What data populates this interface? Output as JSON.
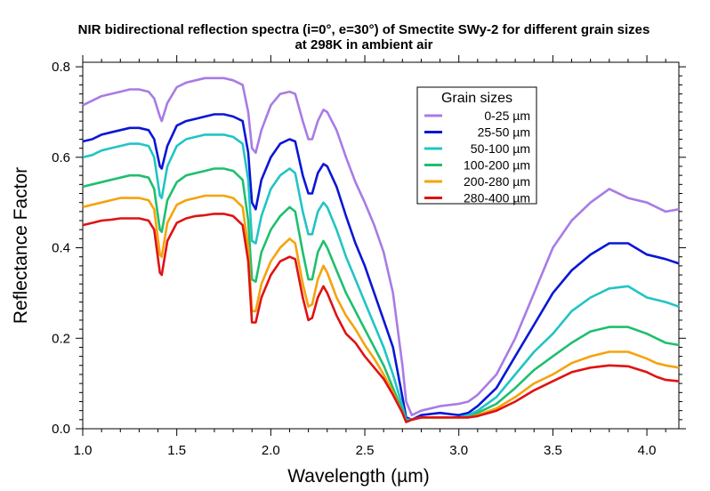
{
  "chart_data": {
    "type": "line",
    "title": "NIR bidirectional reflection spectra (i=0°, e=30°) of Smectite SWy-2 for different grain sizes",
    "subtitle": "at 298K in ambient air",
    "xlabel": "Wavelength (µm)",
    "ylabel": "Reflectance Factor",
    "xlim": [
      1.0,
      4.17
    ],
    "ylim": [
      0.0,
      0.81
    ],
    "xticks": [
      "1.0",
      "1.5",
      "2.0",
      "2.5",
      "3.0",
      "3.5",
      "4.0"
    ],
    "yticks": [
      "0.0",
      "0.2",
      "0.4",
      "0.6",
      "0.8"
    ],
    "grid": false,
    "legend": {
      "title": "Grain sizes",
      "position": "top-right"
    },
    "x": [
      1.0,
      1.05,
      1.1,
      1.15,
      1.2,
      1.25,
      1.3,
      1.35,
      1.38,
      1.41,
      1.42,
      1.45,
      1.5,
      1.55,
      1.6,
      1.65,
      1.7,
      1.75,
      1.8,
      1.85,
      1.88,
      1.9,
      1.92,
      1.95,
      2.0,
      2.05,
      2.1,
      2.13,
      2.17,
      2.2,
      2.22,
      2.25,
      2.28,
      2.3,
      2.35,
      2.4,
      2.45,
      2.5,
      2.55,
      2.6,
      2.65,
      2.7,
      2.72,
      2.75,
      2.8,
      2.9,
      3.0,
      3.05,
      3.1,
      3.2,
      3.3,
      3.4,
      3.5,
      3.6,
      3.7,
      3.8,
      3.9,
      4.0,
      4.05,
      4.1,
      4.17
    ],
    "series": [
      {
        "name": "0-25 µm",
        "color": "#a87be6",
        "values": [
          0.715,
          0.725,
          0.735,
          0.74,
          0.745,
          0.75,
          0.75,
          0.745,
          0.73,
          0.69,
          0.68,
          0.72,
          0.755,
          0.765,
          0.77,
          0.775,
          0.775,
          0.775,
          0.77,
          0.76,
          0.7,
          0.62,
          0.61,
          0.66,
          0.715,
          0.74,
          0.745,
          0.74,
          0.68,
          0.64,
          0.64,
          0.68,
          0.705,
          0.7,
          0.66,
          0.6,
          0.545,
          0.5,
          0.45,
          0.39,
          0.3,
          0.14,
          0.06,
          0.03,
          0.04,
          0.05,
          0.055,
          0.06,
          0.075,
          0.12,
          0.2,
          0.3,
          0.4,
          0.46,
          0.5,
          0.53,
          0.51,
          0.5,
          0.49,
          0.48,
          0.485
        ]
      },
      {
        "name": "25-50 µm",
        "color": "#0a16d6",
        "values": [
          0.635,
          0.64,
          0.65,
          0.655,
          0.66,
          0.665,
          0.665,
          0.66,
          0.64,
          0.58,
          0.575,
          0.625,
          0.67,
          0.68,
          0.685,
          0.69,
          0.695,
          0.695,
          0.69,
          0.68,
          0.61,
          0.5,
          0.485,
          0.55,
          0.6,
          0.63,
          0.64,
          0.635,
          0.56,
          0.52,
          0.52,
          0.565,
          0.585,
          0.58,
          0.535,
          0.47,
          0.41,
          0.36,
          0.3,
          0.24,
          0.18,
          0.07,
          0.025,
          0.02,
          0.03,
          0.035,
          0.03,
          0.035,
          0.05,
          0.09,
          0.16,
          0.23,
          0.3,
          0.35,
          0.385,
          0.41,
          0.41,
          0.385,
          0.38,
          0.375,
          0.365
        ]
      },
      {
        "name": "50-100 µm",
        "color": "#22c4c4",
        "values": [
          0.6,
          0.605,
          0.615,
          0.62,
          0.625,
          0.63,
          0.63,
          0.625,
          0.6,
          0.515,
          0.51,
          0.58,
          0.625,
          0.64,
          0.645,
          0.65,
          0.65,
          0.65,
          0.645,
          0.63,
          0.55,
          0.415,
          0.41,
          0.47,
          0.53,
          0.56,
          0.575,
          0.565,
          0.48,
          0.43,
          0.43,
          0.48,
          0.5,
          0.49,
          0.44,
          0.38,
          0.33,
          0.28,
          0.23,
          0.18,
          0.12,
          0.05,
          0.02,
          0.02,
          0.025,
          0.025,
          0.025,
          0.03,
          0.04,
          0.07,
          0.12,
          0.17,
          0.21,
          0.26,
          0.29,
          0.31,
          0.315,
          0.29,
          0.285,
          0.28,
          0.27
        ]
      },
      {
        "name": "100-200 µm",
        "color": "#1fbf6e",
        "values": [
          0.535,
          0.54,
          0.545,
          0.55,
          0.555,
          0.56,
          0.56,
          0.555,
          0.53,
          0.44,
          0.435,
          0.505,
          0.545,
          0.56,
          0.565,
          0.57,
          0.575,
          0.575,
          0.57,
          0.55,
          0.46,
          0.33,
          0.325,
          0.39,
          0.44,
          0.47,
          0.49,
          0.48,
          0.39,
          0.33,
          0.33,
          0.39,
          0.415,
          0.4,
          0.35,
          0.3,
          0.26,
          0.22,
          0.18,
          0.14,
          0.09,
          0.04,
          0.015,
          0.02,
          0.025,
          0.025,
          0.025,
          0.025,
          0.035,
          0.055,
          0.09,
          0.13,
          0.16,
          0.19,
          0.215,
          0.225,
          0.225,
          0.21,
          0.2,
          0.19,
          0.185
        ]
      },
      {
        "name": "200-280 µm",
        "color": "#f5a30a",
        "values": [
          0.49,
          0.495,
          0.5,
          0.505,
          0.51,
          0.51,
          0.51,
          0.505,
          0.485,
          0.385,
          0.38,
          0.455,
          0.495,
          0.505,
          0.51,
          0.515,
          0.515,
          0.515,
          0.51,
          0.49,
          0.4,
          0.26,
          0.26,
          0.32,
          0.37,
          0.4,
          0.42,
          0.41,
          0.32,
          0.27,
          0.275,
          0.33,
          0.36,
          0.345,
          0.29,
          0.25,
          0.22,
          0.185,
          0.155,
          0.12,
          0.08,
          0.035,
          0.015,
          0.02,
          0.025,
          0.025,
          0.025,
          0.025,
          0.03,
          0.045,
          0.07,
          0.1,
          0.12,
          0.145,
          0.16,
          0.17,
          0.17,
          0.155,
          0.145,
          0.14,
          0.135
        ]
      },
      {
        "name": "280-400 µm",
        "color": "#e01212",
        "values": [
          0.45,
          0.455,
          0.46,
          0.462,
          0.465,
          0.465,
          0.465,
          0.46,
          0.44,
          0.345,
          0.34,
          0.415,
          0.455,
          0.465,
          0.47,
          0.472,
          0.475,
          0.475,
          0.47,
          0.45,
          0.37,
          0.235,
          0.235,
          0.29,
          0.34,
          0.37,
          0.38,
          0.375,
          0.29,
          0.24,
          0.245,
          0.29,
          0.315,
          0.3,
          0.25,
          0.21,
          0.19,
          0.16,
          0.135,
          0.11,
          0.075,
          0.035,
          0.015,
          0.02,
          0.025,
          0.025,
          0.025,
          0.025,
          0.028,
          0.04,
          0.06,
          0.085,
          0.105,
          0.125,
          0.135,
          0.14,
          0.138,
          0.125,
          0.115,
          0.108,
          0.105
        ]
      }
    ]
  }
}
